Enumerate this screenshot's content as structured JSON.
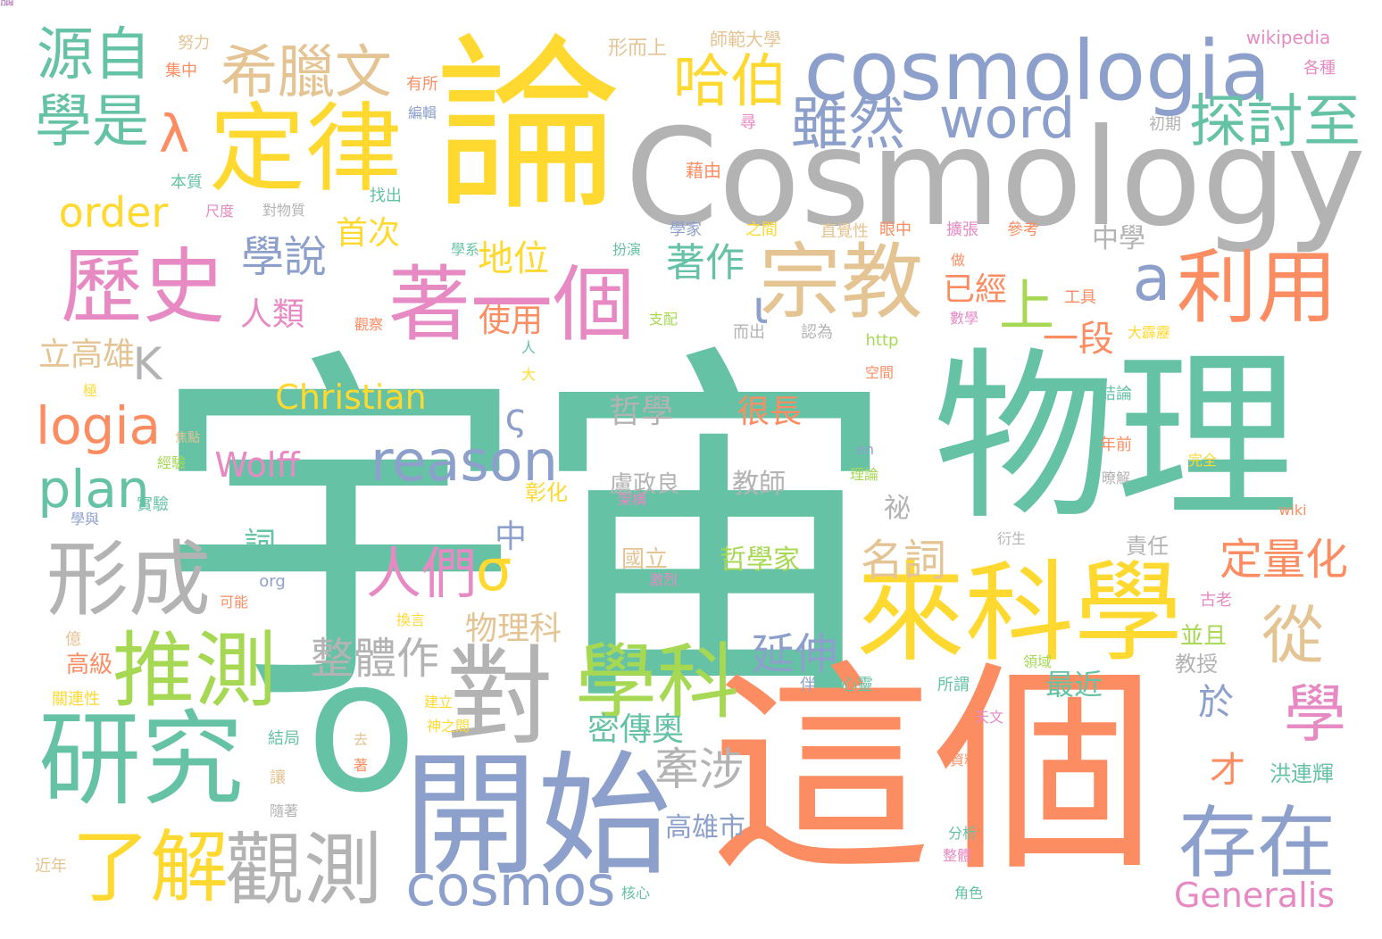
{
  "palette": {
    "green": "#66c2a5",
    "orange": "#fc8d62",
    "blue": "#8da0cb",
    "pink": "#e78ac3",
    "lime": "#a6d854",
    "yellow": "#ffd92f",
    "tan": "#e5c494",
    "gray": "#b3b3b3"
  },
  "words": [
    {
      "text": "宇宙",
      "color": "green"
    },
    {
      "text": "物理",
      "color": "green"
    },
    {
      "text": "這個",
      "color": "orange"
    },
    {
      "text": "論",
      "color": "yellow"
    },
    {
      "text": "Cosmology",
      "color": "gray"
    },
    {
      "text": "來科學",
      "color": "yellow"
    },
    {
      "text": "o",
      "color": "green"
    },
    {
      "text": "開始",
      "color": "blue"
    },
    {
      "text": "對",
      "color": "gray"
    },
    {
      "text": "研究",
      "color": "green"
    },
    {
      "text": "定律",
      "color": "yellow"
    },
    {
      "text": "cosmologia",
      "color": "blue"
    },
    {
      "text": "宗教",
      "color": "tan"
    },
    {
      "text": "著一個",
      "color": "pink"
    },
    {
      "text": "歷史",
      "color": "pink"
    },
    {
      "text": "形成",
      "color": "gray"
    },
    {
      "text": "推測",
      "color": "lime"
    },
    {
      "text": "學科",
      "color": "lime"
    },
    {
      "text": "利用",
      "color": "orange"
    },
    {
      "text": "觀測",
      "color": "gray"
    },
    {
      "text": "了解",
      "color": "yellow"
    },
    {
      "text": "存在",
      "color": "blue"
    },
    {
      "text": "希臘文",
      "color": "tan"
    },
    {
      "text": "源自",
      "color": "green"
    },
    {
      "text": "學是",
      "color": "green"
    },
    {
      "text": "哈伯",
      "color": "yellow"
    },
    {
      "text": "word",
      "color": "blue"
    },
    {
      "text": "雖然",
      "color": "blue"
    },
    {
      "text": "探討至",
      "color": "green"
    },
    {
      "text": "reason",
      "color": "blue"
    },
    {
      "text": "上",
      "color": "lime"
    },
    {
      "text": "a",
      "color": "blue"
    },
    {
      "text": "從",
      "color": "tan"
    },
    {
      "text": "學",
      "color": "pink"
    },
    {
      "text": "cosmos",
      "color": "blue"
    },
    {
      "text": "Generalis",
      "color": "pink"
    },
    {
      "text": "Christian",
      "color": "yellow"
    },
    {
      "text": "Wolff",
      "color": "pink"
    },
    {
      "text": "logia",
      "color": "orange"
    },
    {
      "text": "plan",
      "color": "green"
    },
    {
      "text": "order",
      "color": "yellow"
    },
    {
      "text": "學說",
      "color": "blue"
    },
    {
      "text": "整體作",
      "color": "gray"
    },
    {
      "text": "名詞",
      "color": "tan"
    },
    {
      "text": "延伸",
      "color": "blue"
    },
    {
      "text": "定量化",
      "color": "orange"
    },
    {
      "text": "σ",
      "color": "yellow"
    },
    {
      "text": "λ",
      "color": "orange"
    },
    {
      "text": "K",
      "color": "gray"
    },
    {
      "text": "ς",
      "color": "blue"
    },
    {
      "text": "ι",
      "color": "blue"
    },
    {
      "text": "著作",
      "color": "green"
    },
    {
      "text": "地位",
      "color": "yellow"
    },
    {
      "text": "首次",
      "color": "yellow"
    },
    {
      "text": "已經",
      "color": "orange"
    },
    {
      "text": "一段",
      "color": "orange"
    },
    {
      "text": "人類",
      "color": "pink"
    },
    {
      "text": "使用",
      "color": "orange"
    },
    {
      "text": "立高雄",
      "color": "tan"
    },
    {
      "text": "哲學",
      "color": "gray"
    },
    {
      "text": "很長",
      "color": "orange"
    },
    {
      "text": "人們",
      "color": "pink"
    },
    {
      "text": "詞",
      "color": "green"
    },
    {
      "text": "中",
      "color": "blue"
    },
    {
      "text": "物理科",
      "color": "tan"
    },
    {
      "text": "密傳奧",
      "color": "green"
    },
    {
      "text": "牽涉",
      "color": "gray"
    },
    {
      "text": "於",
      "color": "blue"
    },
    {
      "text": "才",
      "color": "orange"
    },
    {
      "text": "最近",
      "color": "green"
    },
    {
      "text": "並且",
      "color": "lime"
    },
    {
      "text": "中學",
      "color": "gray"
    },
    {
      "text": "祕",
      "color": "gray"
    },
    {
      "text": "高雄市",
      "color": "blue"
    },
    {
      "text": "高級",
      "color": "orange"
    },
    {
      "text": "盧政良",
      "color": "gray"
    },
    {
      "text": "教師",
      "color": "gray"
    },
    {
      "text": "哲學家",
      "color": "lime"
    },
    {
      "text": "國立",
      "color": "tan"
    },
    {
      "text": "彰化",
      "color": "yellow"
    },
    {
      "text": "責任",
      "color": "gray"
    },
    {
      "text": "教授",
      "color": "gray"
    },
    {
      "text": "洪連輝",
      "color": "green"
    },
    {
      "text": "師範大學",
      "color": "tan"
    },
    {
      "text": "形而上",
      "color": "tan"
    },
    {
      "text": "wikipedia",
      "color": "pink"
    },
    {
      "text": "努力",
      "color": "tan"
    },
    {
      "text": "集中",
      "color": "orange"
    },
    {
      "text": "各種",
      "color": "pink"
    },
    {
      "text": "有所",
      "color": "orange"
    },
    {
      "text": "編輯",
      "color": "blue"
    },
    {
      "text": "尋",
      "color": "pink"
    },
    {
      "text": "初期",
      "color": "gray"
    },
    {
      "text": "藉由",
      "color": "orange"
    },
    {
      "text": "本質",
      "color": "green"
    },
    {
      "text": "找出",
      "color": "green"
    },
    {
      "text": "尺度",
      "color": "pink"
    },
    {
      "text": "對物質",
      "color": "gray"
    },
    {
      "text": "學家",
      "color": "blue"
    },
    {
      "text": "之間",
      "color": "yellow"
    },
    {
      "text": "直覺性",
      "color": "tan"
    },
    {
      "text": "眼中",
      "color": "orange"
    },
    {
      "text": "擴張",
      "color": "pink"
    },
    {
      "text": "參考",
      "color": "orange"
    },
    {
      "text": "學系",
      "color": "green"
    },
    {
      "text": "扮演",
      "color": "green"
    },
    {
      "text": "做",
      "color": "orange"
    },
    {
      "text": "工具",
      "color": "orange"
    },
    {
      "text": "支配",
      "color": "lime"
    },
    {
      "text": "而出",
      "color": "gray"
    },
    {
      "text": "認為",
      "color": "gray"
    },
    {
      "text": "http",
      "color": "lime"
    },
    {
      "text": "大霹靂",
      "color": "yellow"
    },
    {
      "text": "觀察",
      "color": "orange"
    },
    {
      "text": "數學",
      "color": "pink"
    },
    {
      "text": "人",
      "color": "green"
    },
    {
      "text": "大",
      "color": "yellow"
    },
    {
      "text": "空間",
      "color": "orange"
    },
    {
      "text": "結論",
      "color": "green"
    },
    {
      "text": "極",
      "color": "yellow"
    },
    {
      "text": "焦點",
      "color": "tan"
    },
    {
      "text": "經驗",
      "color": "lime"
    },
    {
      "text": "en",
      "color": "blue"
    },
    {
      "text": "理論",
      "color": "lime"
    },
    {
      "text": "年前",
      "color": "orange"
    },
    {
      "text": "完全",
      "color": "yellow"
    },
    {
      "text": "暸解",
      "color": "gray"
    },
    {
      "text": "wiki",
      "color": "orange"
    },
    {
      "text": "學與",
      "color": "blue"
    },
    {
      "text": "實驗",
      "color": "green"
    },
    {
      "text": "架構",
      "color": "pink"
    },
    {
      "text": "衍生",
      "color": "gray"
    },
    {
      "text": "org",
      "color": "blue"
    },
    {
      "text": "激烈",
      "color": "pink"
    },
    {
      "text": "古老",
      "color": "pink"
    },
    {
      "text": "可能",
      "color": "orange"
    },
    {
      "text": "換言",
      "color": "yellow"
    },
    {
      "text": "億",
      "color": "tan"
    },
    {
      "text": "領域",
      "color": "lime"
    },
    {
      "text": "關連性",
      "color": "yellow"
    },
    {
      "text": "伴",
      "color": "blue"
    },
    {
      "text": "心靈",
      "color": "green"
    },
    {
      "text": "所謂",
      "color": "green"
    },
    {
      "text": "建立",
      "color": "yellow"
    },
    {
      "text": "神之間",
      "color": "yellow"
    },
    {
      "text": "天文",
      "color": "pink"
    },
    {
      "text": "結局",
      "color": "green"
    },
    {
      "text": "去",
      "color": "tan"
    },
    {
      "text": "著",
      "color": "orange"
    },
    {
      "text": "資料",
      "color": "orange"
    },
    {
      "text": "讓",
      "color": "tan"
    },
    {
      "text": "隨著",
      "color": "gray"
    },
    {
      "text": "分析",
      "color": "green"
    },
    {
      "text": "整體",
      "color": "pink"
    },
    {
      "text": "近年",
      "color": "tan"
    },
    {
      "text": "核心",
      "color": "green"
    },
    {
      "text": "角色",
      "color": "green"
    },
    {
      "text": "膨脹",
      "color": "blue"
    },
    {
      "text": "瞬間",
      "color": "pink"
    }
  ]
}
